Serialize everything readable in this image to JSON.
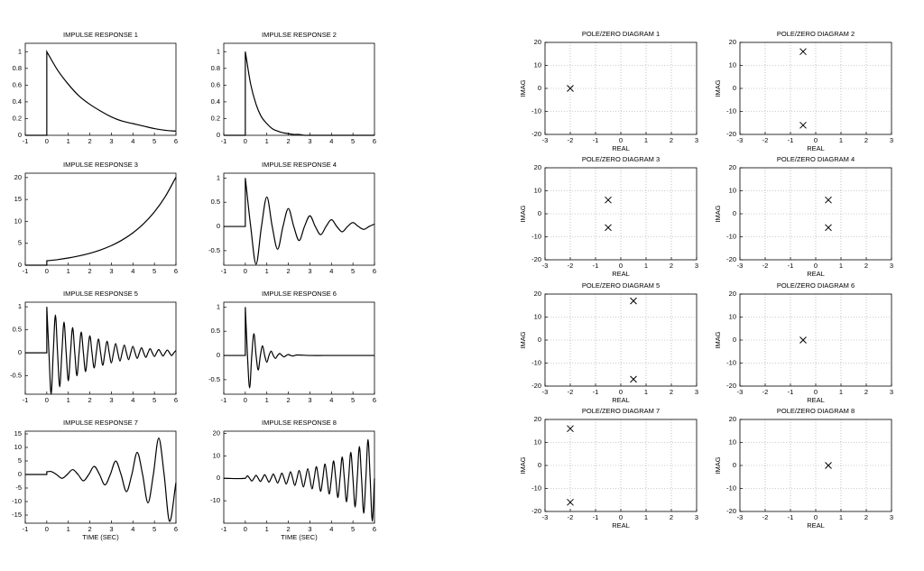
{
  "chart_data": [
    {
      "type": "line",
      "title": "IMPULSE RESPONSE 1",
      "color": "#000000",
      "grid": false,
      "xlim": [
        -1,
        6
      ],
      "xticks": [
        -1,
        0,
        1,
        2,
        3,
        4,
        5,
        6
      ],
      "ylim": [
        0,
        1.1
      ],
      "yticks": [
        0,
        0.2,
        0.4,
        0.6,
        0.8,
        1
      ],
      "x": [
        -1,
        0,
        0,
        0.5,
        1,
        1.5,
        2,
        2.5,
        3,
        3.5,
        4,
        4.5,
        5,
        5.5,
        6
      ],
      "values": [
        0,
        0,
        1,
        0.78,
        0.61,
        0.47,
        0.37,
        0.29,
        0.22,
        0.17,
        0.14,
        0.11,
        0.08,
        0.06,
        0.05
      ]
    },
    {
      "type": "line",
      "title": "IMPULSE RESPONSE 2",
      "color": "#000000",
      "grid": false,
      "xlim": [
        -1,
        6
      ],
      "xticks": [
        -1,
        0,
        1,
        2,
        3,
        4,
        5,
        6
      ],
      "ylim": [
        0,
        1.1
      ],
      "yticks": [
        0,
        0.2,
        0.4,
        0.6,
        0.8,
        1
      ],
      "x": [
        -1,
        0,
        0,
        0.25,
        0.5,
        0.75,
        1,
        1.25,
        1.5,
        1.75,
        2,
        2.25,
        2.5,
        2.75,
        3,
        4,
        5,
        6
      ],
      "values": [
        0,
        0,
        1,
        0.61,
        0.37,
        0.22,
        0.14,
        0.08,
        0.05,
        0.03,
        0.02,
        0.01,
        0.01,
        0,
        0,
        0,
        0,
        0
      ]
    },
    {
      "type": "line",
      "title": "IMPULSE RESPONSE 3",
      "color": "#000000",
      "grid": false,
      "xlim": [
        -1,
        6
      ],
      "xticks": [
        -1,
        0,
        1,
        2,
        3,
        4,
        5,
        6
      ],
      "ylim": [
        0,
        21
      ],
      "yticks": [
        0,
        5,
        10,
        15,
        20
      ],
      "x": [
        -1,
        0,
        0,
        0.5,
        1,
        1.5,
        2,
        2.5,
        3,
        3.5,
        4,
        4.5,
        5,
        5.5,
        6
      ],
      "values": [
        0,
        0,
        1,
        1.28,
        1.65,
        2.12,
        2.72,
        3.49,
        4.48,
        5.75,
        7.39,
        9.49,
        12.18,
        15.64,
        20.09
      ]
    },
    {
      "type": "line",
      "title": "IMPULSE RESPONSE 4",
      "color": "#000000",
      "grid": false,
      "xlim": [
        -1,
        6
      ],
      "xticks": [
        -1,
        0,
        1,
        2,
        3,
        4,
        5,
        6
      ],
      "ylim": [
        -0.8,
        1.1
      ],
      "yticks": [
        -0.5,
        0,
        0.5,
        1
      ],
      "x": [
        -1,
        0,
        0,
        0.25,
        0.5,
        0.75,
        1,
        1.25,
        1.5,
        1.75,
        2,
        2.25,
        2.5,
        2.75,
        3,
        3.25,
        3.5,
        3.75,
        4,
        4.25,
        4.5,
        4.75,
        5,
        5.25,
        5.5,
        5.75,
        6
      ],
      "values": [
        0,
        0,
        1,
        0,
        -0.78,
        0,
        0.61,
        0,
        -0.47,
        0,
        0.37,
        0,
        -0.29,
        0,
        0.22,
        0,
        -0.17,
        0,
        0.14,
        0,
        -0.11,
        0,
        0.08,
        0,
        -0.06,
        0,
        0.05
      ]
    },
    {
      "type": "line",
      "title": "IMPULSE RESPONSE 5",
      "color": "#000000",
      "grid": false,
      "xlim": [
        -1,
        6
      ],
      "xticks": [
        -1,
        0,
        1,
        2,
        3,
        4,
        5,
        6
      ],
      "ylim": [
        -0.9,
        1.1
      ],
      "yticks": [
        -0.5,
        0,
        0.5,
        1
      ],
      "x": [
        -1,
        0,
        0,
        0.1,
        0.2,
        0.3,
        0.4,
        0.5,
        0.6,
        0.7,
        0.8,
        0.9,
        1,
        1.1,
        1.2,
        1.3,
        1.4,
        1.5,
        1.6,
        1.7,
        1.8,
        1.9,
        2,
        2.1,
        2.2,
        2.3,
        2.4,
        2.5,
        2.6,
        2.7,
        2.8,
        2.9,
        3,
        3.1,
        3.2,
        3.3,
        3.4,
        3.5,
        3.6,
        3.7,
        3.8,
        3.9,
        4,
        4.1,
        4.2,
        4.3,
        4.4,
        4.5,
        4.6,
        4.7,
        4.8,
        4.9,
        5,
        5.1,
        5.2,
        5.3,
        5.4,
        5.5,
        5.6,
        5.7,
        5.8,
        5.9,
        6
      ],
      "values": [
        0,
        0,
        1,
        0,
        -0.9,
        0,
        0.82,
        0,
        -0.74,
        0,
        0.67,
        0,
        -0.61,
        0,
        0.55,
        0,
        -0.5,
        0,
        0.45,
        0,
        -0.41,
        0,
        0.37,
        0,
        -0.33,
        0,
        0.3,
        0,
        -0.27,
        0,
        0.25,
        0,
        -0.22,
        0,
        0.2,
        0,
        -0.18,
        0,
        0.17,
        0,
        -0.15,
        0,
        0.14,
        0,
        -0.12,
        0,
        0.11,
        0,
        -0.1,
        0,
        0.09,
        0,
        -0.08,
        0,
        0.07,
        0,
        -0.07,
        0,
        0.06,
        0,
        -0.06,
        0,
        0.05
      ]
    },
    {
      "type": "line",
      "title": "IMPULSE RESPONSE 6",
      "color": "#000000",
      "grid": false,
      "xlim": [
        -1,
        6
      ],
      "xticks": [
        -1,
        0,
        1,
        2,
        3,
        4,
        5,
        6
      ],
      "ylim": [
        -0.8,
        1.1
      ],
      "yticks": [
        -0.5,
        0,
        0.5,
        1
      ],
      "x": [
        -1,
        0,
        0,
        0.1,
        0.2,
        0.3,
        0.4,
        0.5,
        0.6,
        0.7,
        0.8,
        0.9,
        1,
        1.1,
        1.2,
        1.3,
        1.4,
        1.5,
        1.6,
        1.7,
        1.8,
        1.9,
        2,
        2.1,
        2.2,
        2.3,
        2.4,
        3,
        4,
        5,
        6
      ],
      "values": [
        0,
        0,
        1,
        0,
        -0.67,
        0,
        0.45,
        0,
        -0.3,
        0,
        0.2,
        0,
        -0.14,
        0,
        0.09,
        0,
        -0.06,
        0,
        0.04,
        0,
        -0.03,
        0,
        0.02,
        0,
        -0.01,
        0,
        0.01,
        0,
        0,
        0,
        0
      ]
    },
    {
      "type": "line",
      "title": "IMPULSE RESPONSE 7",
      "xlabel": "TIME (SEC)",
      "color": "#000000",
      "grid": false,
      "xlim": [
        -1,
        6
      ],
      "xticks": [
        -1,
        0,
        1,
        2,
        3,
        4,
        5,
        6
      ],
      "ylim": [
        -18,
        16
      ],
      "yticks": [
        -15,
        -10,
        -5,
        0,
        5,
        10,
        15
      ],
      "x": [
        -1,
        0,
        0,
        0.2,
        0.45,
        0.7,
        0.95,
        1.2,
        1.45,
        1.7,
        1.95,
        2.2,
        2.45,
        2.7,
        2.95,
        3.2,
        3.45,
        3.7,
        3.95,
        4.2,
        4.45,
        4.7,
        4.95,
        5.2,
        5.45,
        5.7,
        6
      ],
      "values": [
        0,
        0,
        1,
        1.1,
        0,
        -1.42,
        0,
        1.82,
        0,
        -2.34,
        0,
        3,
        0,
        -3.86,
        0,
        4.95,
        0,
        -6.36,
        0,
        8.17,
        0,
        -10.49,
        0,
        13.46,
        0,
        -17.29,
        -3
      ]
    },
    {
      "type": "line",
      "title": "IMPULSE RESPONSE 8",
      "xlabel": "TIME (SEC)",
      "color": "#000000",
      "grid": false,
      "xlim": [
        -1,
        6
      ],
      "xticks": [
        -1,
        0,
        1,
        2,
        3,
        4,
        5,
        6
      ],
      "ylim": [
        -20,
        21
      ],
      "yticks": [
        -10,
        0,
        10,
        20
      ],
      "x": [
        -1,
        0,
        0.1,
        0.2,
        0.3,
        0.4,
        0.5,
        0.6,
        0.7,
        0.8,
        0.9,
        1,
        1.1,
        1.2,
        1.3,
        1.4,
        1.5,
        1.6,
        1.7,
        1.8,
        1.9,
        2,
        2.1,
        2.2,
        2.3,
        2.4,
        2.5,
        2.6,
        2.7,
        2.8,
        2.9,
        3,
        3.1,
        3.2,
        3.3,
        3.4,
        3.5,
        3.6,
        3.7,
        3.8,
        3.9,
        4,
        4.1,
        4.2,
        4.3,
        4.4,
        4.5,
        4.6,
        4.7,
        4.8,
        4.9,
        5,
        5.1,
        5.2,
        5.3,
        5.4,
        5.5,
        5.6,
        5.7,
        5.8,
        5.9,
        6
      ],
      "values": [
        0,
        0,
        1.1,
        0,
        -1.2,
        0,
        1.3,
        0,
        -1.4,
        0,
        1.6,
        0,
        -1.7,
        0,
        1.9,
        0,
        -2.1,
        0,
        2.3,
        0,
        -2.6,
        0,
        2.9,
        0,
        -3.2,
        0,
        3.5,
        0,
        -3.9,
        0,
        4.3,
        0,
        -4.7,
        0,
        5.2,
        0,
        -5.8,
        0,
        6.4,
        0,
        -7,
        0,
        7.8,
        0,
        -8.6,
        0,
        9.5,
        0,
        -10.5,
        0,
        11.6,
        0,
        -12.8,
        0,
        14.2,
        0,
        -15.6,
        0,
        17.3,
        0,
        -19.1,
        0
      ]
    },
    {
      "type": "scatter",
      "title": "POLE/ZERO DIAGRAM 1",
      "xlabel": "REAL",
      "ylabel": "IMAG",
      "marker": "x",
      "color": "#000000",
      "grid": true,
      "xlim": [
        -3,
        3
      ],
      "xticks": [
        -3,
        -2,
        -1,
        0,
        1,
        2,
        3
      ],
      "ylim": [
        -20,
        20
      ],
      "yticks": [
        -20,
        -10,
        0,
        10,
        20
      ],
      "x": [
        -2
      ],
      "values": [
        0
      ]
    },
    {
      "type": "scatter",
      "title": "POLE/ZERO DIAGRAM 2",
      "xlabel": "REAL",
      "ylabel": "IMAG",
      "marker": "x",
      "color": "#000000",
      "grid": true,
      "xlim": [
        -3,
        3
      ],
      "xticks": [
        -3,
        -2,
        -1,
        0,
        1,
        2,
        3
      ],
      "ylim": [
        -20,
        20
      ],
      "yticks": [
        -20,
        -10,
        0,
        10,
        20
      ],
      "x": [
        -0.5,
        -0.5
      ],
      "values": [
        16,
        -16
      ]
    },
    {
      "type": "scatter",
      "title": "POLE/ZERO DIAGRAM 3",
      "xlabel": "REAL",
      "ylabel": "IMAG",
      "marker": "x",
      "color": "#000000",
      "grid": true,
      "xlim": [
        -3,
        3
      ],
      "xticks": [
        -3,
        -2,
        -1,
        0,
        1,
        2,
        3
      ],
      "ylim": [
        -20,
        20
      ],
      "yticks": [
        -20,
        -10,
        0,
        10,
        20
      ],
      "x": [
        -0.5,
        -0.5
      ],
      "values": [
        6,
        -6
      ]
    },
    {
      "type": "scatter",
      "title": "POLE/ZERO DIAGRAM 4",
      "xlabel": "REAL",
      "ylabel": "IMAG",
      "marker": "x",
      "color": "#000000",
      "grid": true,
      "xlim": [
        -3,
        3
      ],
      "xticks": [
        -3,
        -2,
        -1,
        0,
        1,
        2,
        3
      ],
      "ylim": [
        -20,
        20
      ],
      "yticks": [
        -20,
        -10,
        0,
        10,
        20
      ],
      "x": [
        0.5,
        0.5
      ],
      "values": [
        6,
        -6
      ]
    },
    {
      "type": "scatter",
      "title": "POLE/ZERO DIAGRAM 5",
      "xlabel": "REAL",
      "ylabel": "IMAG",
      "marker": "x",
      "color": "#000000",
      "grid": true,
      "xlim": [
        -3,
        3
      ],
      "xticks": [
        -3,
        -2,
        -1,
        0,
        1,
        2,
        3
      ],
      "ylim": [
        -20,
        20
      ],
      "yticks": [
        -20,
        -10,
        0,
        10,
        20
      ],
      "x": [
        0.5,
        0.5
      ],
      "values": [
        17,
        -17
      ]
    },
    {
      "type": "scatter",
      "title": "POLE/ZERO DIAGRAM 6",
      "xlabel": "REAL",
      "ylabel": "IMAG",
      "marker": "x",
      "color": "#000000",
      "grid": true,
      "xlim": [
        -3,
        3
      ],
      "xticks": [
        -3,
        -2,
        -1,
        0,
        1,
        2,
        3
      ],
      "ylim": [
        -20,
        20
      ],
      "yticks": [
        -20,
        -10,
        0,
        10,
        20
      ],
      "x": [
        -0.5
      ],
      "values": [
        0
      ]
    },
    {
      "type": "scatter",
      "title": "POLE/ZERO DIAGRAM 7",
      "xlabel": "REAL",
      "ylabel": "IMAG",
      "marker": "x",
      "color": "#000000",
      "grid": true,
      "xlim": [
        -3,
        3
      ],
      "xticks": [
        -3,
        -2,
        -1,
        0,
        1,
        2,
        3
      ],
      "ylim": [
        -20,
        20
      ],
      "yticks": [
        -20,
        -10,
        0,
        10,
        20
      ],
      "x": [
        -2,
        -2
      ],
      "values": [
        16,
        -16
      ]
    },
    {
      "type": "scatter",
      "title": "POLE/ZERO DIAGRAM 8",
      "xlabel": "REAL",
      "ylabel": "IMAG",
      "marker": "x",
      "color": "#000000",
      "grid": true,
      "xlim": [
        -3,
        3
      ],
      "xticks": [
        -3,
        -2,
        -1,
        0,
        1,
        2,
        3
      ],
      "ylim": [
        -20,
        20
      ],
      "yticks": [
        -20,
        -10,
        0,
        10,
        20
      ],
      "x": [
        0.5
      ],
      "values": [
        0
      ]
    }
  ]
}
